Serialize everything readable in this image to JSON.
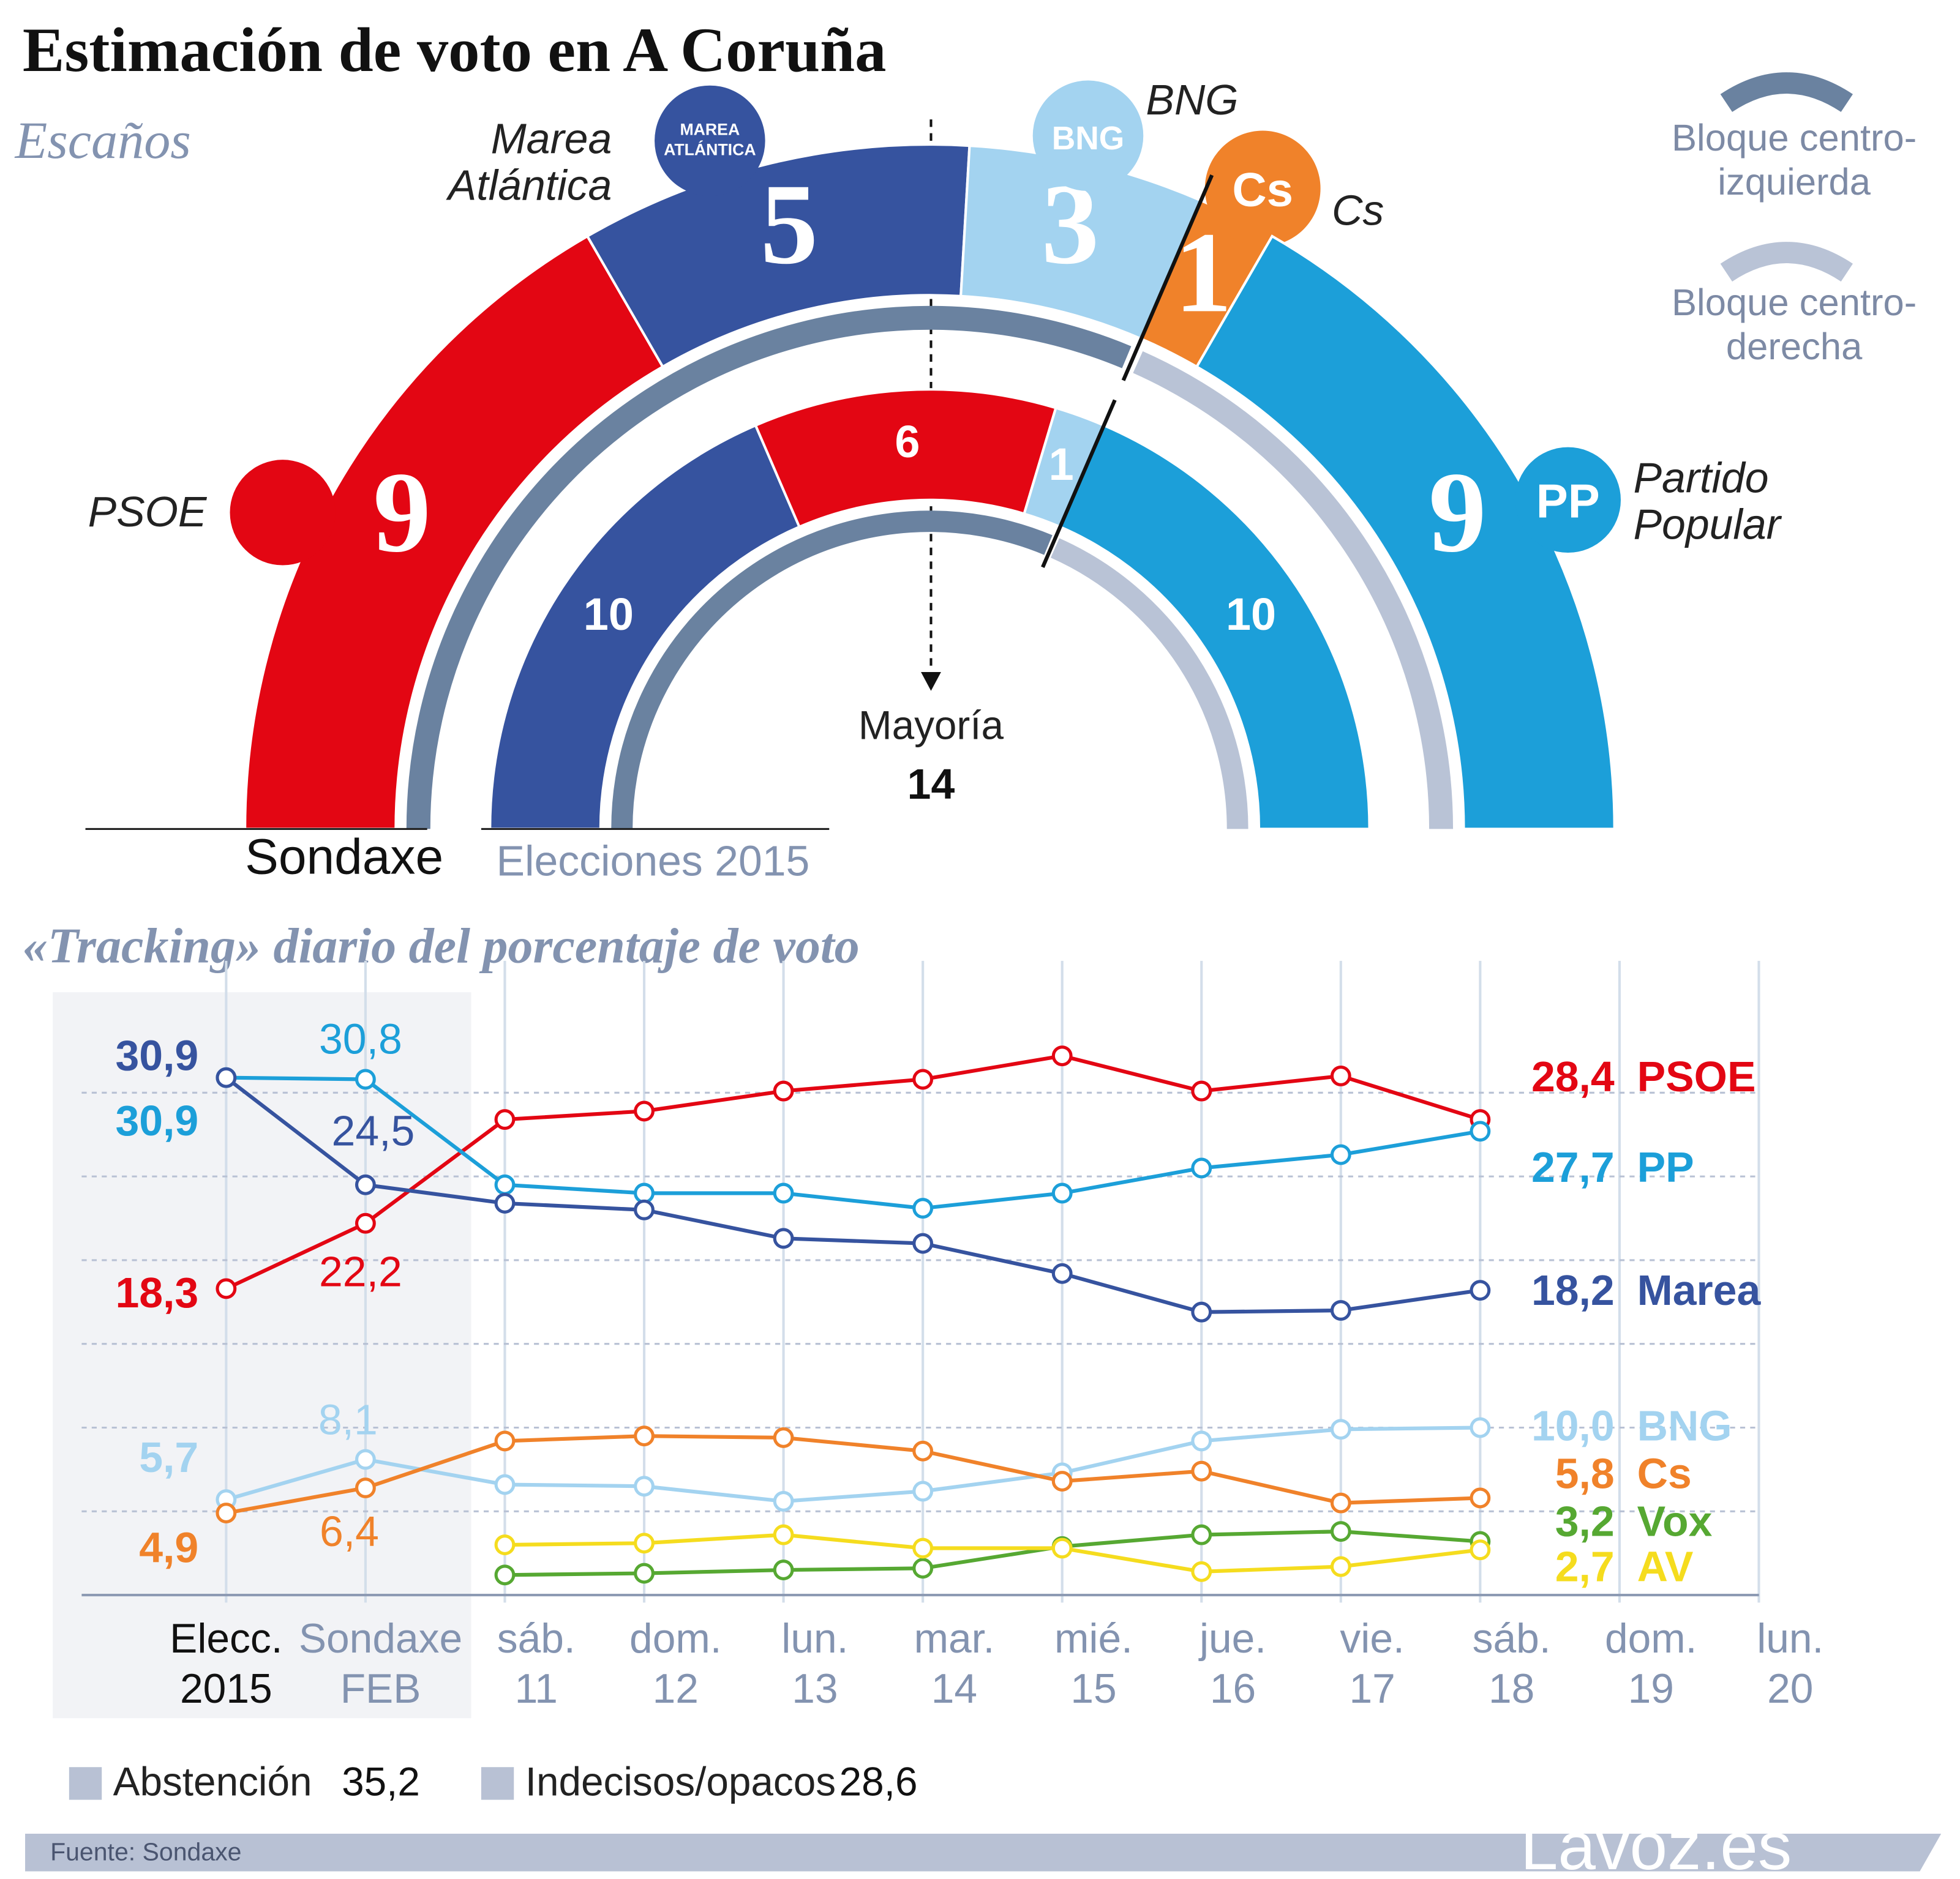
{
  "title": "Estimación de voto en A Coruña",
  "source": "Fuente: Sondaxe",
  "brand": "Lavoz.es",
  "chart_data": [
    {
      "type": "parliament",
      "subtitle": "Escaños",
      "majority": {
        "label": "Mayoría",
        "value": 14
      },
      "blocs": [
        {
          "label_lines": [
            "Bloque centro-",
            "izquierda"
          ],
          "color": "#6a82a0"
        },
        {
          "label_lines": [
            "Bloque centro-",
            "derecha"
          ],
          "color": "#b9c3d6"
        }
      ],
      "rings": [
        {
          "label": "Sondaxe",
          "segments": [
            {
              "name_lines": [
                "PSOE"
              ],
              "value": 9,
              "color": "#e30613",
              "bloc": 0,
              "logo": []
            },
            {
              "name_lines": [
                "Marea",
                "Atlántica"
              ],
              "value": 5,
              "color": "#36539f",
              "bloc": 0,
              "logo": [
                "MAREA",
                "ATLÁNTICA"
              ]
            },
            {
              "name_lines": [
                "BNG"
              ],
              "value": 3,
              "color": "#a3d3f0",
              "bloc": 0,
              "logo": [
                "BNG"
              ]
            },
            {
              "name_lines": [
                "Cs"
              ],
              "value": 1,
              "color": "#f0822a",
              "bloc": 1,
              "logo": [
                "Cs"
              ]
            },
            {
              "name_lines": [
                "Partido",
                "Popular"
              ],
              "value": 9,
              "color": "#1c9fd9",
              "bloc": 1,
              "logo": [
                "PP"
              ]
            }
          ]
        },
        {
          "label": "Elecciones 2015",
          "segments": [
            {
              "value": 10,
              "color": "#36539f",
              "bloc": 0
            },
            {
              "value": 6,
              "color": "#e30613",
              "bloc": 0
            },
            {
              "value": 1,
              "color": "#a3d3f0",
              "bloc": 0
            },
            {
              "value": 10,
              "color": "#1c9fd9",
              "bloc": 1
            }
          ]
        }
      ]
    },
    {
      "type": "line",
      "title": "«Tracking» diario del porcentaje de voto",
      "categories": [
        [
          "Elecc.",
          "2015"
        ],
        [
          "Sondaxe",
          "FEB"
        ],
        [
          "sáb.",
          "11"
        ],
        [
          "dom.",
          "12"
        ],
        [
          "lun.",
          "13"
        ],
        [
          "mar.",
          "14"
        ],
        [
          "mié.",
          "15"
        ],
        [
          "jue.",
          "16"
        ],
        [
          "vie.",
          "17"
        ],
        [
          "sáb.",
          "18"
        ],
        [
          "dom.",
          "19"
        ],
        [
          "lun.",
          "20"
        ]
      ],
      "ylim": [
        0,
        36
      ],
      "ygrid": [
        5,
        10,
        15,
        20,
        25,
        30
      ],
      "series": [
        {
          "name": "PSOE",
          "color": "#e30613",
          "values": [
            18.3,
            22.2,
            28.4,
            28.9,
            30.1,
            30.8,
            32.2,
            30.1,
            31.0,
            28.4,
            null,
            null
          ],
          "value_labels": [
            "18,3",
            "22,2",
            null,
            null,
            null,
            null,
            null,
            null,
            null,
            "28,4",
            null,
            null
          ]
        },
        {
          "name": "PP",
          "color": "#1c9fd9",
          "values": [
            30.9,
            30.8,
            24.5,
            24.0,
            24.0,
            23.1,
            24.0,
            25.5,
            26.3,
            27.7,
            null,
            null
          ],
          "value_labels": [
            "30,9",
            "30,8",
            null,
            null,
            null,
            null,
            null,
            null,
            null,
            "27,7",
            null,
            null
          ]
        },
        {
          "name": "Marea",
          "color": "#36539f",
          "values": [
            30.9,
            24.5,
            23.4,
            23.0,
            21.3,
            21.0,
            19.2,
            16.9,
            17.0,
            18.2,
            null,
            null
          ],
          "value_labels": [
            "30,9",
            "24,5",
            null,
            null,
            null,
            null,
            null,
            null,
            null,
            "18,2",
            null,
            null
          ]
        },
        {
          "name": "BNG",
          "color": "#a3d3f0",
          "values": [
            5.7,
            8.1,
            6.6,
            6.5,
            5.6,
            6.2,
            7.3,
            9.2,
            9.9,
            10.0,
            null,
            null
          ],
          "value_labels": [
            "5,7",
            "8,1",
            null,
            null,
            null,
            null,
            null,
            null,
            null,
            "10,0",
            null,
            null
          ]
        },
        {
          "name": "Cs",
          "color": "#f0822a",
          "values": [
            4.9,
            6.4,
            9.2,
            9.5,
            9.4,
            8.6,
            6.8,
            7.4,
            5.5,
            5.8,
            null,
            null
          ],
          "value_labels": [
            "4,9",
            "6,4",
            null,
            null,
            null,
            null,
            null,
            null,
            null,
            "5,8",
            null,
            null
          ]
        },
        {
          "name": "Vox",
          "color": "#56a832",
          "values": [
            null,
            null,
            1.2,
            1.3,
            1.5,
            1.6,
            2.9,
            3.6,
            3.8,
            3.2,
            null,
            null
          ],
          "value_labels": [
            null,
            null,
            null,
            null,
            null,
            null,
            null,
            null,
            null,
            "3,2",
            null,
            null
          ]
        },
        {
          "name": "AV",
          "color": "#f5dc1e",
          "values": [
            null,
            null,
            3.0,
            3.1,
            3.6,
            2.8,
            2.8,
            1.4,
            1.7,
            2.7,
            null,
            null
          ],
          "value_labels": [
            null,
            null,
            null,
            null,
            null,
            null,
            null,
            null,
            null,
            "2,7",
            null,
            null
          ]
        }
      ],
      "extras": [
        {
          "name": "Abstención",
          "value": 35.2,
          "value_label": "35,2",
          "color": "#b8c1d4"
        },
        {
          "name": "Indecisos/opacos",
          "value": 28.6,
          "value_label": "28,6",
          "color": "#b8c1d4"
        }
      ]
    }
  ]
}
